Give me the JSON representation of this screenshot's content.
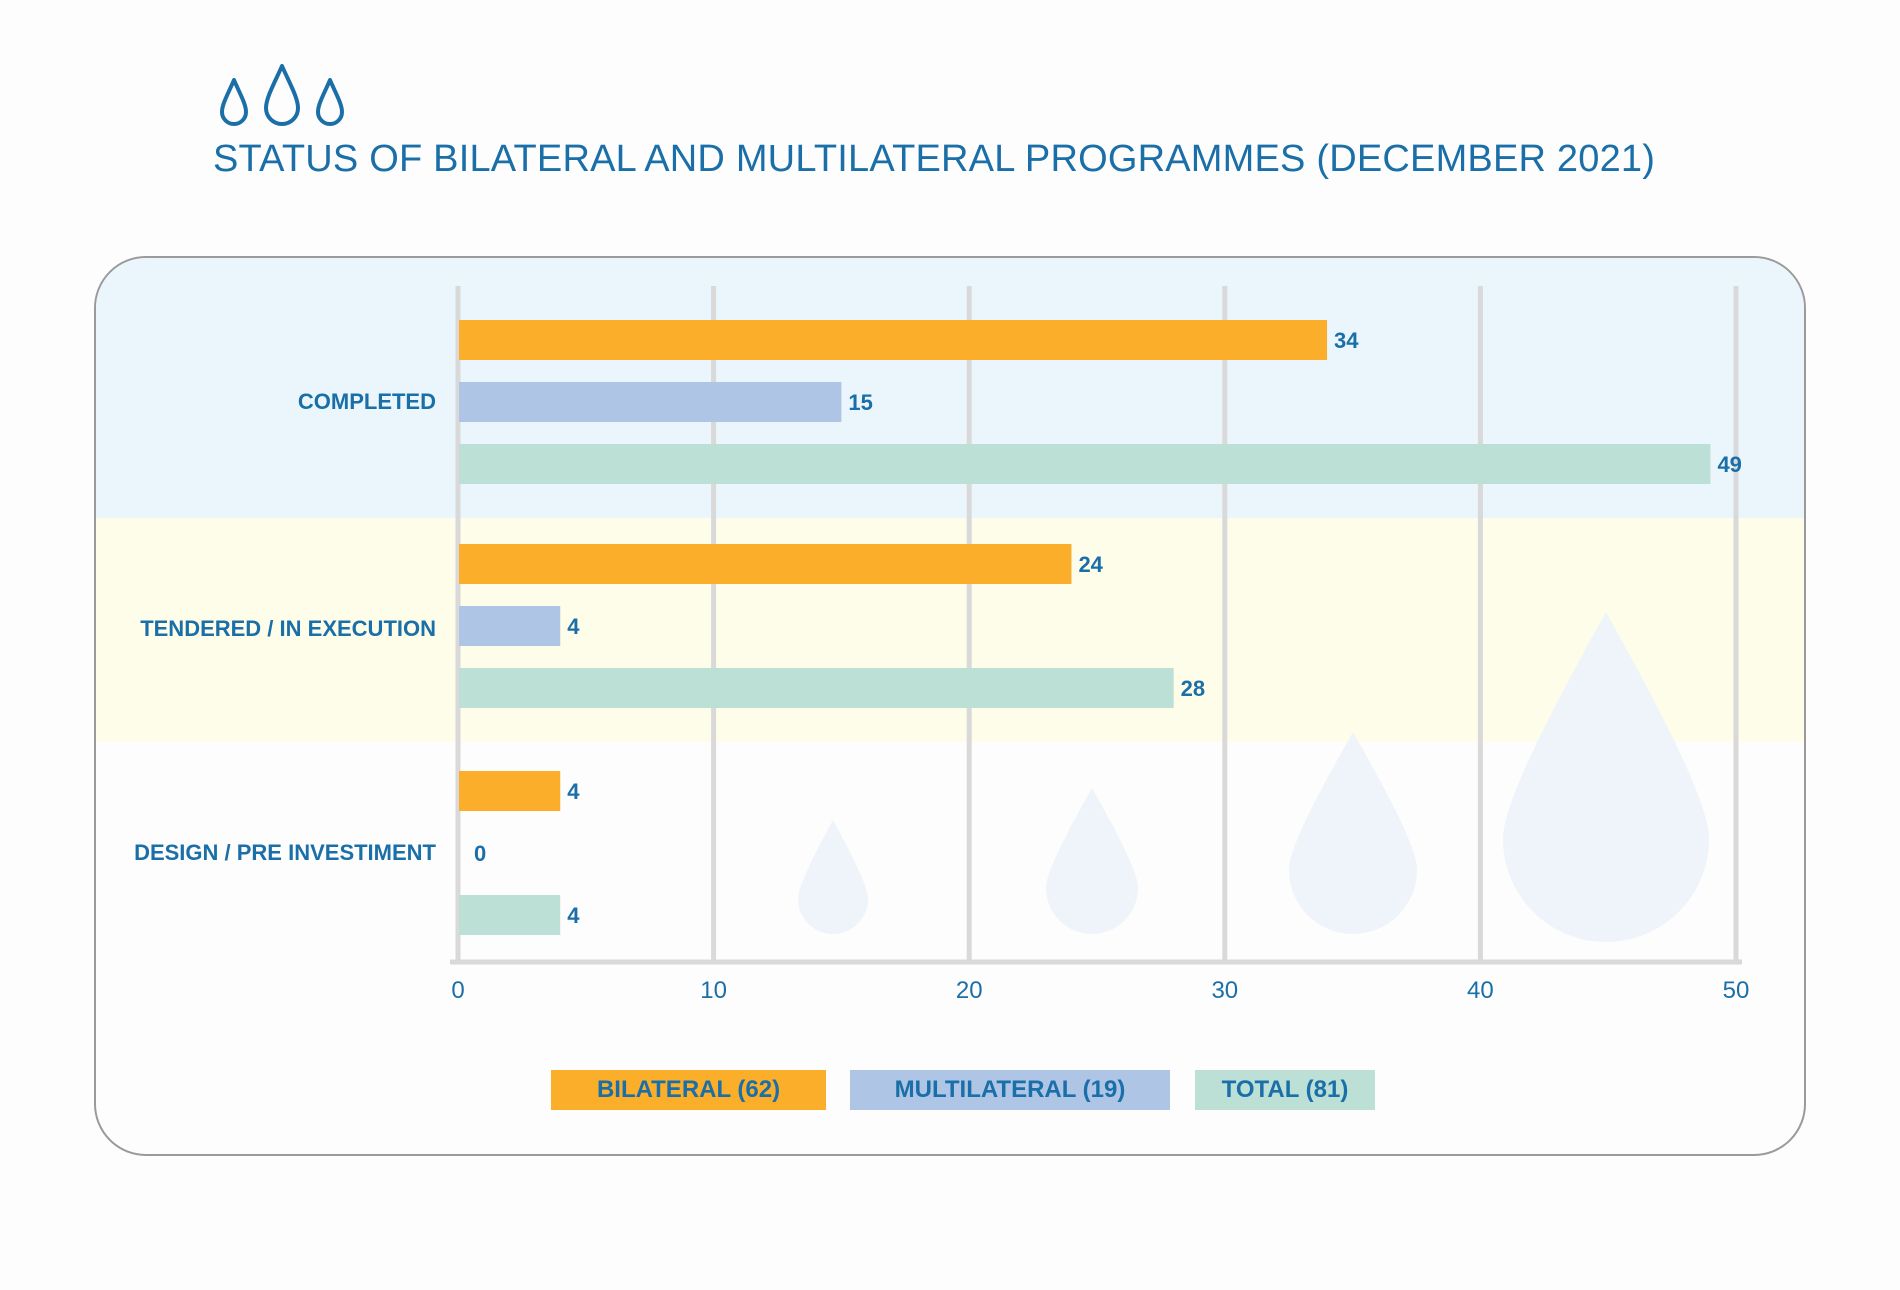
{
  "title": "STATUS OF BILATERAL AND MULTILATERAL PROGRAMMES (DECEMBER 2021)",
  "colors": {
    "bilateral": "#fbae2a",
    "multilateral": "#aec5e5",
    "total": "#bcdfd6",
    "text": "#1a6fa8",
    "grid": "#d9d9d9",
    "band_completed": "#eaf6fc",
    "band_tendered": "#fefdea",
    "drop": "#eef4f9"
  },
  "icons": [
    "water-drop-icon",
    "water-drop-icon",
    "water-drop-icon"
  ],
  "chart_data": {
    "type": "bar",
    "orientation": "horizontal",
    "categories": [
      "COMPLETED",
      "TENDERED / IN EXECUTION",
      "DESIGN / PRE INVESTIMENT"
    ],
    "series": [
      {
        "name": "BILATERAL (62)",
        "values": [
          34,
          24,
          4
        ]
      },
      {
        "name": "MULTILATERAL (19)",
        "values": [
          15,
          4,
          0
        ]
      },
      {
        "name": "TOTAL (81)",
        "values": [
          49,
          28,
          4
        ]
      }
    ],
    "x_ticks": [
      "0",
      "10",
      "20",
      "30",
      "40",
      "50"
    ],
    "xlim": [
      0,
      50
    ],
    "grid": true,
    "legend_position": "bottom"
  }
}
